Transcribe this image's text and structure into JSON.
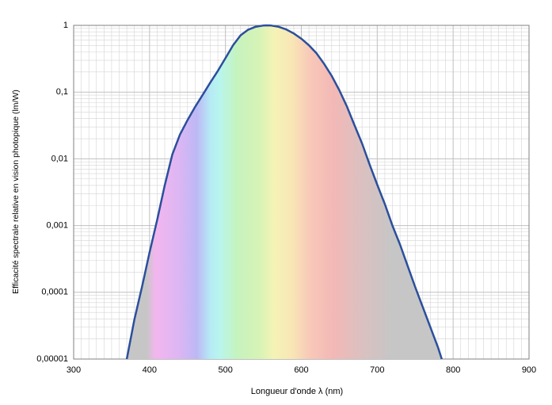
{
  "chart_data": {
    "type": "line",
    "x_label": "Longueur d'onde λ (nm)",
    "y_label": "Efficacité spectrale relative en vision photopique (lm/W)",
    "log_y": true,
    "grid": true,
    "minor_grid": true,
    "area_fill": "spectrum",
    "color": "#2b4f9c",
    "x": [
      370,
      380,
      390,
      400,
      410,
      420,
      430,
      440,
      450,
      460,
      470,
      480,
      490,
      500,
      510,
      520,
      530,
      540,
      550,
      555,
      560,
      570,
      580,
      590,
      600,
      610,
      620,
      630,
      640,
      650,
      660,
      670,
      680,
      690,
      700,
      710,
      720,
      730,
      740,
      750,
      760,
      770,
      780,
      785
    ],
    "values": [
      1e-05,
      3.9e-05,
      0.00012,
      0.000396,
      0.00121,
      0.004,
      0.0116,
      0.023,
      0.038,
      0.06,
      0.091,
      0.139,
      0.208,
      0.323,
      0.503,
      0.71,
      0.862,
      0.954,
      0.995,
      1.0,
      0.995,
      0.952,
      0.87,
      0.757,
      0.631,
      0.503,
      0.381,
      0.265,
      0.175,
      0.107,
      0.061,
      0.032,
      0.017,
      0.0082,
      0.0041,
      0.0021,
      0.001,
      0.00052,
      0.00025,
      0.00012,
      6e-05,
      3e-05,
      1.5e-05,
      1e-05
    ],
    "xlim": [
      300,
      900
    ],
    "xticks": [
      300,
      400,
      500,
      600,
      700,
      800,
      900
    ],
    "ylim": [
      1e-05,
      1
    ],
    "yticks": [
      {
        "value": 1e-05,
        "label": "0,00001"
      },
      {
        "value": 0.0001,
        "label": "0,0001"
      },
      {
        "value": 0.001,
        "label": "0,001"
      },
      {
        "value": 0.01,
        "label": "0,01"
      },
      {
        "value": 0.1,
        "label": "0,1"
      },
      1
    ]
  }
}
